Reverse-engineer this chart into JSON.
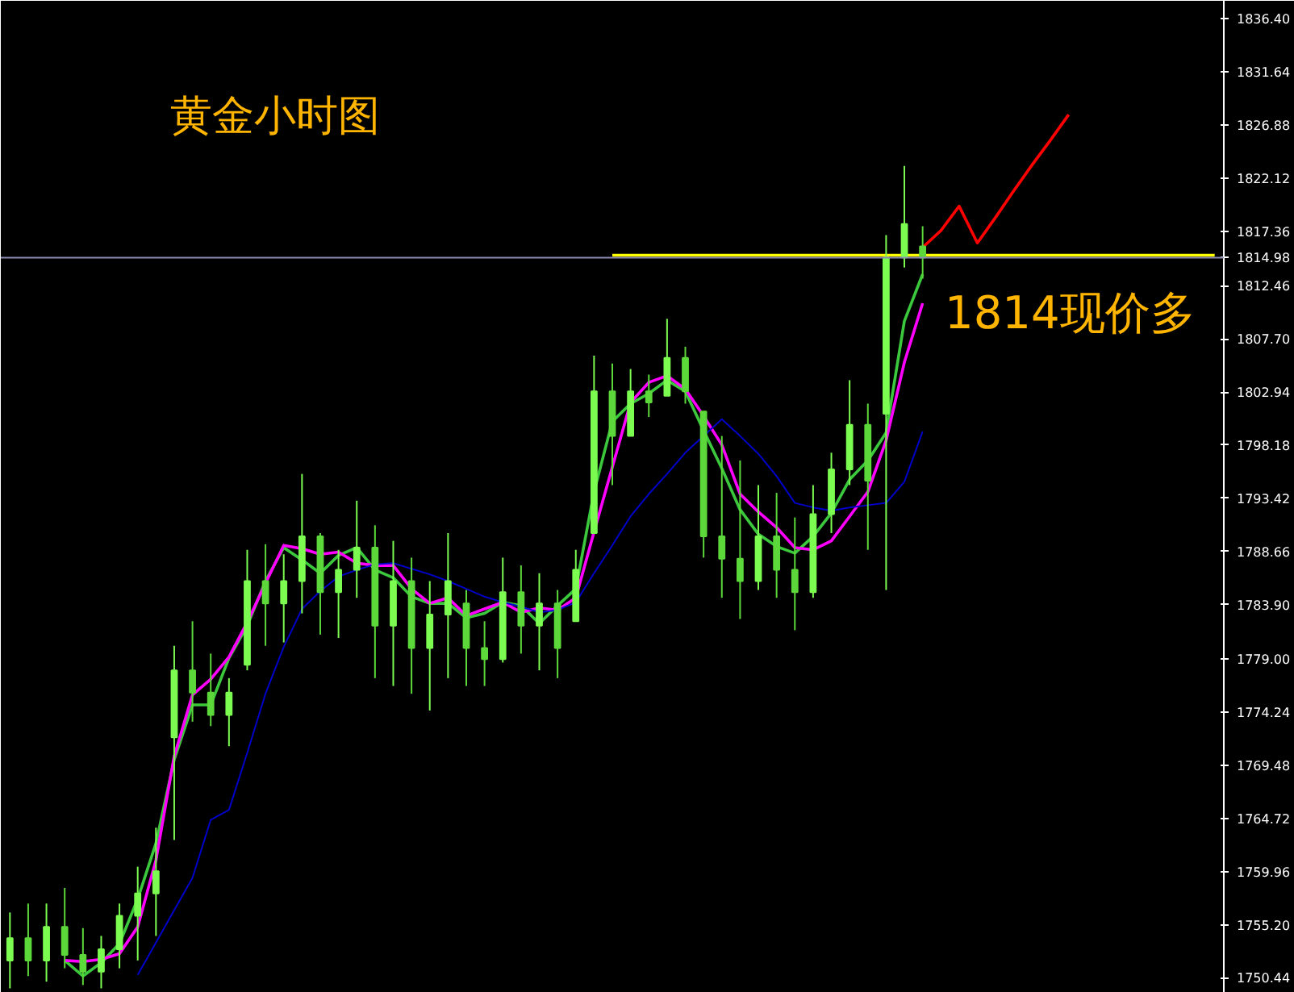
{
  "chart_data": {
    "type": "candlestick",
    "title": "黄金小时图",
    "annotations": [
      "1814现价多"
    ],
    "colors": [
      "#7cfc50",
      "#5cd83a",
      "#7cfc50",
      "#5cd83a",
      "#5cd83a",
      "#7cfc50",
      "#7cfc50",
      "#7cfc50",
      "#7cfc50",
      "#7cfc50",
      "#5cd83a",
      "#5cd83a",
      "#7cfc50",
      "#7cfc50",
      "#5cd83a",
      "#7cfc50",
      "#7cfc50",
      "#5cd83a",
      "#7cfc50",
      "#7cfc50",
      "#5cd83a",
      "#7cfc50",
      "#5cd83a",
      "#7cfc50",
      "#7cfc50",
      "#5cd83a",
      "#5cd83a",
      "#7cfc50",
      "#5cd83a",
      "#7cfc50",
      "#5cd83a",
      "#7cfc50",
      "#7cfc50",
      "#5cd83a",
      "#7cfc50",
      "#5cd83a",
      "#7cfc50",
      "#5cd83a",
      "#5cd83a",
      "#5cd83a",
      "#5cd83a",
      "#7cfc50",
      "#5cd83a",
      "#5cd83a",
      "#7cfc50",
      "#7cfc50",
      "#7cfc50",
      "#5cd83a",
      "#7cfc50",
      "#7cfc50",
      "#5cd83a",
      null,
      null,
      null,
      null,
      null,
      null,
      null,
      null,
      null,
      null,
      null,
      null,
      null,
      null,
      null,
      null
    ],
    "categories": [
      null,
      null,
      null,
      null,
      null,
      null,
      null,
      null,
      null,
      null,
      null,
      null,
      null,
      null,
      null,
      null,
      null,
      null,
      null,
      null,
      null,
      null,
      null,
      null,
      null,
      null,
      null,
      null,
      null,
      null,
      null,
      null,
      null,
      null,
      null,
      null,
      null,
      null,
      null,
      null,
      null,
      null,
      null,
      null,
      null,
      null,
      null,
      null,
      null,
      null,
      null,
      null,
      null,
      null,
      null,
      null,
      null,
      null,
      null,
      null,
      null,
      null,
      null,
      null,
      null,
      null,
      null
    ],
    "ohlc": [
      [
        1752.0,
        1756.3,
        1749.5,
        1754.0
      ],
      [
        1754.0,
        1757.1,
        1750.6,
        1752.0
      ],
      [
        1752.0,
        1757.1,
        1750.1,
        1755.0
      ],
      [
        1755.0,
        1758.5,
        1751.3,
        1752.5
      ],
      [
        1752.5,
        1754.9,
        1749.8,
        1751.0
      ],
      [
        1751.0,
        1754.2,
        1749.5,
        1753.0
      ],
      [
        1753.0,
        1757.1,
        1751.3,
        1756.0
      ],
      [
        1756.0,
        1760.4,
        1752.0,
        1758.0
      ],
      [
        1758.0,
        1763.9,
        1754.2,
        1760.0
      ],
      [
        1772.0,
        1780.2,
        1762.8,
        1778.0
      ],
      [
        1778.0,
        1782.4,
        1773.4,
        1776.0
      ],
      [
        1776.0,
        1779.5,
        1773.0,
        1774.0
      ],
      [
        1774.0,
        1777.3,
        1771.2,
        1776.0
      ],
      [
        1778.5,
        1788.8,
        1778.0,
        1786.0
      ],
      [
        1786.0,
        1789.3,
        1780.2,
        1784.0
      ],
      [
        1784.0,
        1788.4,
        1780.5,
        1786.0
      ],
      [
        1786.0,
        1795.6,
        1783.1,
        1790.0
      ],
      [
        1790.0,
        1790.3,
        1781.2,
        1785.0
      ],
      [
        1785.0,
        1788.8,
        1780.9,
        1787.0
      ],
      [
        1787.0,
        1793.2,
        1784.5,
        1789.0
      ],
      [
        1789.0,
        1791.0,
        1777.3,
        1782.0
      ],
      [
        1782.0,
        1789.6,
        1776.6,
        1786.0
      ],
      [
        1786.0,
        1788.1,
        1775.9,
        1780.0
      ],
      [
        1780.0,
        1786.0,
        1774.4,
        1783.0
      ],
      [
        1783.0,
        1790.3,
        1777.3,
        1786.0
      ],
      [
        1784.0,
        1785.2,
        1776.6,
        1780.0
      ],
      [
        1780.0,
        1782.4,
        1776.6,
        1779.0
      ],
      [
        1779.0,
        1788.1,
        1778.7,
        1785.0
      ],
      [
        1785.0,
        1787.4,
        1779.5,
        1782.0
      ],
      [
        1782.0,
        1786.7,
        1778.0,
        1784.0
      ],
      [
        1784.0,
        1785.2,
        1777.3,
        1780.0
      ],
      [
        1782.4,
        1788.8,
        1782.4,
        1787.0
      ],
      [
        1790.3,
        1806.2,
        1790.3,
        1803.0
      ],
      [
        1803.0,
        1805.5,
        1794.6,
        1799.0
      ],
      [
        1799.0,
        1805.0,
        1799.0,
        1803.0
      ],
      [
        1803.0,
        1804.5,
        1800.7,
        1802.0
      ],
      [
        1802.6,
        1809.5,
        1802.6,
        1806.0
      ],
      [
        1806.0,
        1807.0,
        1801.9,
        1803.0
      ],
      [
        1801.2,
        1801.2,
        1788.1,
        1790.0
      ],
      [
        1790.0,
        1799.0,
        1784.5,
        1788.0
      ],
      [
        1788.0,
        1796.8,
        1782.6,
        1786.0
      ],
      [
        1786.0,
        1794.6,
        1785.2,
        1790.0
      ],
      [
        1790.0,
        1793.9,
        1784.5,
        1787.0
      ],
      [
        1787.0,
        1791.7,
        1781.6,
        1785.0
      ],
      [
        1785.0,
        1794.6,
        1784.5,
        1792.0
      ],
      [
        1792.0,
        1797.5,
        1790.3,
        1796.0
      ],
      [
        1796.0,
        1804.0,
        1794.6,
        1800.0
      ],
      [
        1800.0,
        1801.9,
        1788.8,
        1795.0
      ],
      [
        1801.0,
        1817.0,
        1785.2,
        1815.0
      ],
      [
        1815.0,
        1823.2,
        1814.1,
        1818.0
      ],
      [
        1816.0,
        1817.8,
        1813.1,
        1815.0
      ],
      null,
      null,
      null,
      null,
      null,
      null,
      null,
      null,
      null,
      null,
      null,
      null,
      null,
      null,
      null,
      null
    ],
    "series": [
      {
        "type": "line",
        "color": "#3cc83c",
        "values": [
          null,
          null,
          null,
          1752.0,
          1750.6,
          1751.8,
          1753.5,
          1757.5,
          1762.5,
          1770.0,
          1774.9,
          1774.9,
          1779.1,
          1782.0,
          1786.0,
          1789.0,
          1787.9,
          1786.7,
          1788.3,
          1789.0,
          1787.0,
          1786.3,
          1784.6,
          1784.0,
          1784.0,
          1782.7,
          1783.1,
          1784.1,
          1783.8,
          1782.2,
          1783.8,
          1785.3,
          1794.0,
          1800.3,
          1801.9,
          1802.8,
          1804.0,
          1803.0,
          1799.5,
          1796.1,
          1792.4,
          1790.2,
          1789.1,
          1788.5,
          1790.0,
          1792.1,
          1795.1,
          1796.8,
          1799.3,
          1809.3,
          1813.5,
          null,
          null,
          null,
          null,
          null,
          null,
          null,
          null,
          null,
          null,
          null,
          null,
          null,
          null,
          null,
          null
        ]
      },
      {
        "type": "line",
        "color": "#ff00ff",
        "values": [
          null,
          null,
          null,
          1752.0,
          1751.9,
          1752.1,
          1752.6,
          1755.0,
          1761.0,
          1770.3,
          1775.8,
          1777.2,
          1779.2,
          1782.3,
          1785.8,
          1789.2,
          1788.9,
          1788.4,
          1788.6,
          1787.6,
          1787.4,
          1787.4,
          1785.3,
          1784.0,
          1784.5,
          1782.9,
          1783.5,
          1784.1,
          1783.2,
          1783.6,
          1783.4,
          1784.5,
          1790.4,
          1796.2,
          1802.0,
          1803.8,
          1804.4,
          1803.2,
          1800.8,
          1798.2,
          1793.8,
          1792.2,
          1790.8,
          1789.0,
          1788.8,
          1789.6,
          1791.8,
          1794.0,
          1798.6,
          1805.6,
          1810.9,
          null,
          null,
          null,
          null,
          null,
          null,
          null,
          null,
          null,
          null,
          null,
          null,
          null,
          null,
          null,
          null
        ]
      },
      {
        "type": "line",
        "color": "#0000c8",
        "values": [
          null,
          null,
          null,
          null,
          null,
          null,
          null,
          1750.7,
          1753.6,
          1756.5,
          1759.4,
          1764.6,
          1765.5,
          1770.6,
          1775.9,
          1780.1,
          1783.5,
          1785.1,
          1786.4,
          1787.0,
          1787.5,
          1787.6,
          1787.1,
          1786.6,
          1786.0,
          1785.3,
          1784.6,
          1784.1,
          1783.7,
          1783.2,
          1783.4,
          1784.1,
          1786.7,
          1789.2,
          1791.8,
          1793.8,
          1795.6,
          1797.5,
          1799.0,
          1800.5,
          1799.0,
          1797.4,
          1795.4,
          1793.0,
          1792.6,
          1792.3,
          1792.6,
          1792.8,
          1793.0,
          1794.9,
          1799.4,
          null,
          null,
          null,
          null,
          null,
          null,
          null,
          null,
          null,
          null,
          null,
          null,
          null,
          null,
          null,
          null
        ]
      },
      {
        "type": "line",
        "color": "#ffff00",
        "values": [
          null,
          null,
          null,
          null,
          null,
          null,
          null,
          null,
          null,
          null,
          null,
          null,
          null,
          null,
          null,
          null,
          null,
          null,
          null,
          null,
          null,
          null,
          null,
          null,
          null,
          null,
          null,
          null,
          null,
          null,
          null,
          null,
          null,
          1815.2,
          1815.2,
          1815.2,
          1815.2,
          1815.2,
          1815.2,
          1815.2,
          1815.2,
          1815.2,
          1815.2,
          1815.2,
          1815.2,
          1815.2,
          1815.2,
          1815.2,
          1815.2,
          1815.2,
          1815.2,
          1815.2,
          1815.2,
          1815.2,
          1815.2,
          1815.2,
          1815.2,
          1815.2,
          1815.2,
          1815.2,
          1815.2,
          1815.2,
          1815.2,
          1815.2,
          1815.2,
          1815.2,
          1815.2
        ]
      },
      {
        "type": "line",
        "color": "#ff0000",
        "values": [
          null,
          null,
          null,
          null,
          null,
          null,
          null,
          null,
          null,
          null,
          null,
          null,
          null,
          null,
          null,
          null,
          null,
          null,
          null,
          null,
          null,
          null,
          null,
          null,
          null,
          null,
          null,
          null,
          null,
          null,
          null,
          null,
          null,
          null,
          null,
          null,
          null,
          null,
          null,
          null,
          null,
          null,
          null,
          null,
          null,
          null,
          null,
          null,
          null,
          null,
          1815.9,
          1817.4,
          1819.6,
          1816.3,
          1818.6,
          1821.0,
          1823.3,
          1825.5,
          1827.8,
          null,
          null,
          null,
          null,
          null,
          null,
          null,
          null
        ]
      }
    ],
    "ref_lines": [
      {
        "axis": "y",
        "value": 1814.98,
        "label": "1814.98",
        "color": "#8c8cb4"
      }
    ],
    "ylim": [
      1749.1,
      1838.0
    ],
    "yticks": [
      {
        "value": 1836.4,
        "label": "1836.40"
      },
      1831.64,
      1826.88,
      1822.12,
      1817.36,
      1812.46,
      {
        "value": 1807.7,
        "label": "1807.70"
      },
      1802.94,
      1798.18,
      1793.42,
      1788.66,
      {
        "value": 1783.9,
        "label": "1783.90"
      },
      {
        "value": 1779.0,
        "label": "1779.00"
      },
      1774.24,
      1769.48,
      1764.72,
      1759.96,
      {
        "value": 1755.2,
        "label": "1755.20"
      },
      1750.44
    ],
    "tick_labels": "y",
    "grid": false
  }
}
